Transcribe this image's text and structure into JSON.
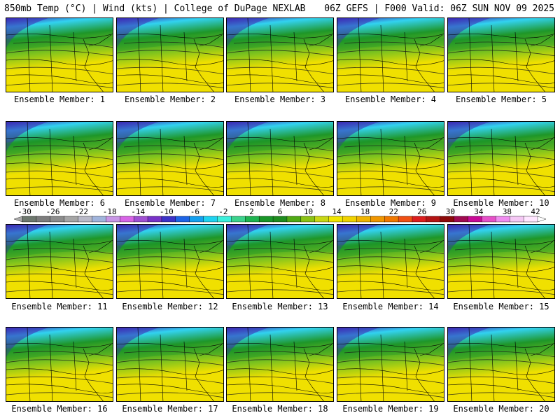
{
  "header": {
    "left_title": "850mb Temp (°C) | Wind (kts) | College of DuPage NEXLAB",
    "right_title": "06Z GEFS | F000 Valid: 06Z SUN NOV 09 2025"
  },
  "members": [
    {
      "label": "Ensemble Member: 1"
    },
    {
      "label": "Ensemble Member: 2"
    },
    {
      "label": "Ensemble Member: 3"
    },
    {
      "label": "Ensemble Member: 4"
    },
    {
      "label": "Ensemble Member: 5"
    },
    {
      "label": "Ensemble Member: 6"
    },
    {
      "label": "Ensemble Member: 7"
    },
    {
      "label": "Ensemble Member: 8"
    },
    {
      "label": "Ensemble Member: 9"
    },
    {
      "label": "Ensemble Member: 10"
    },
    {
      "label": "Ensemble Member: 11"
    },
    {
      "label": "Ensemble Member: 12"
    },
    {
      "label": "Ensemble Member: 13"
    },
    {
      "label": "Ensemble Member: 14"
    },
    {
      "label": "Ensemble Member: 15"
    },
    {
      "label": "Ensemble Member: 16"
    },
    {
      "label": "Ensemble Member: 17"
    },
    {
      "label": "Ensemble Member: 18"
    },
    {
      "label": "Ensemble Member: 19"
    },
    {
      "label": "Ensemble Member: 20"
    }
  ],
  "colorbar": {
    "tick_labels": [
      "-30",
      "-26",
      "-22",
      "-18",
      "-14",
      "-10",
      "-6",
      "-2",
      "2",
      "6",
      "10",
      "14",
      "18",
      "22",
      "26",
      "30",
      "34",
      "38",
      "42"
    ],
    "colors": [
      "#6e786e",
      "#7d7d7d",
      "#8c8c8c",
      "#a5a5a5",
      "#b9b9c8",
      "#a0b4dc",
      "#c896e6",
      "#d764e6",
      "#a050d2",
      "#7832c8",
      "#3c32c8",
      "#1e64e6",
      "#14a0f0",
      "#1ed2f0",
      "#3cf0dc",
      "#3cd28c",
      "#1eb450",
      "#199628",
      "#1e8c1e",
      "#50aa14",
      "#8cc314",
      "#c8d714",
      "#f0e600",
      "#f0d200",
      "#f0b400",
      "#f09600",
      "#f07800",
      "#f05014",
      "#dc1e1e",
      "#b41414",
      "#8c0a0a",
      "#a00a50",
      "#c80a96",
      "#e650c8",
      "#f08cf0",
      "#f5c8f5",
      "#ffe6ff"
    ]
  },
  "palette": {
    "cold": "#3c28b4",
    "cyan": "#32d2f0",
    "green_dark": "#1e9628",
    "green_light": "#7dc31e",
    "yellow": "#f0e000"
  }
}
